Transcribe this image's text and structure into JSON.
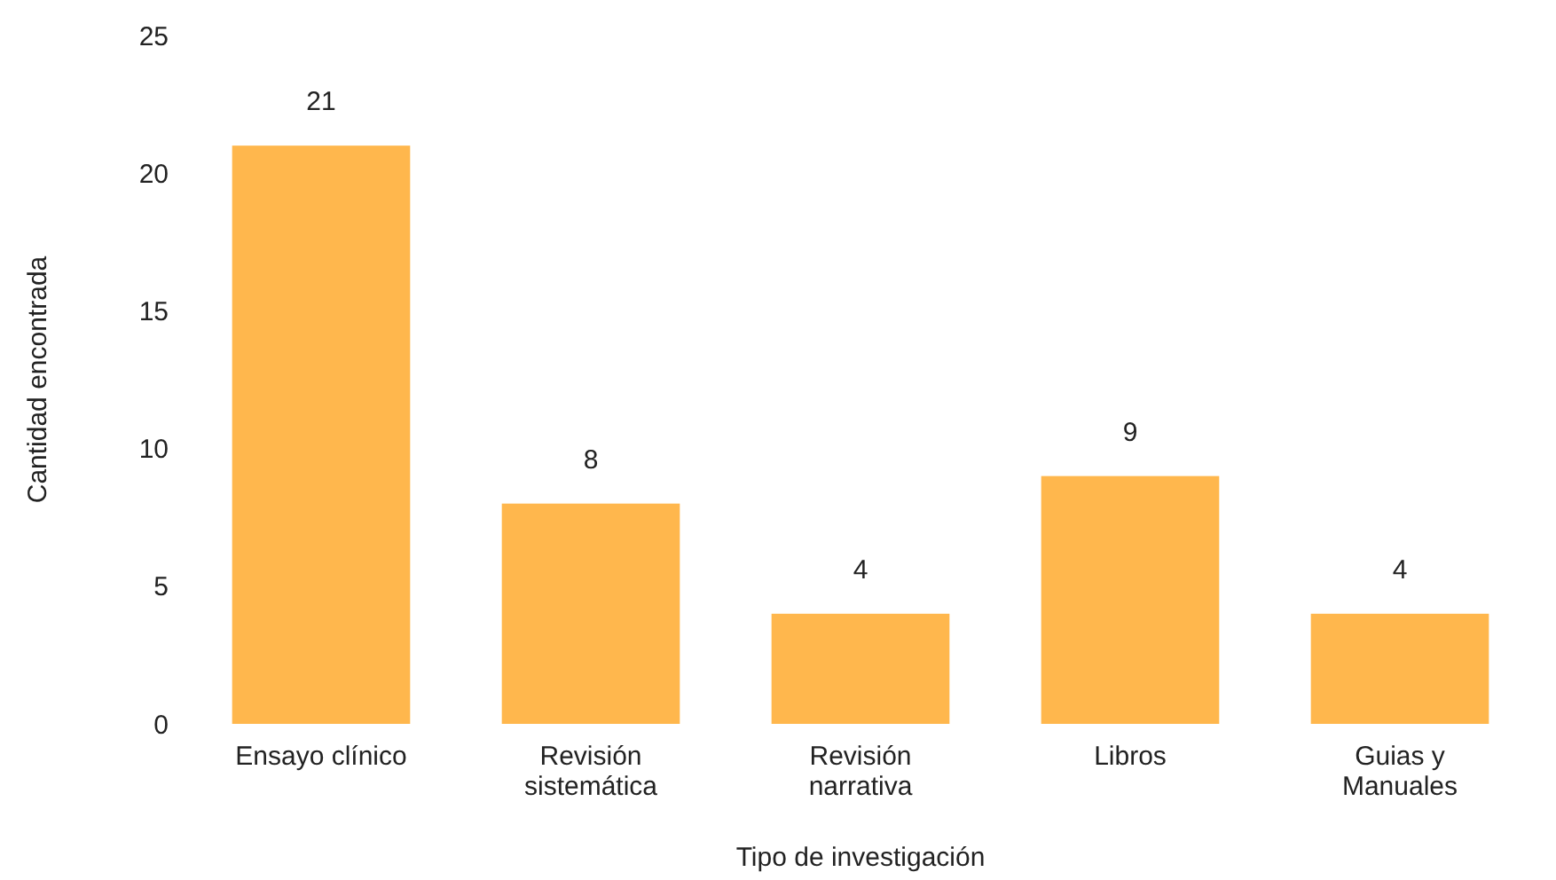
{
  "chart_data": {
    "type": "bar",
    "xlabel": "Tipo de investigación",
    "ylabel": "Cantidad encontrada",
    "categories": [
      "Ensayo clínico",
      "Revisión sistemática",
      "Revisión narrativa",
      "Libros",
      "Guias y Manuales"
    ],
    "values": [
      21,
      8,
      4,
      9,
      4
    ],
    "color": "#ffb74d",
    "ylim": [
      0,
      25
    ],
    "yticks": [
      0,
      5,
      10,
      15,
      20,
      25
    ],
    "grid": false,
    "data_labels": true
  }
}
